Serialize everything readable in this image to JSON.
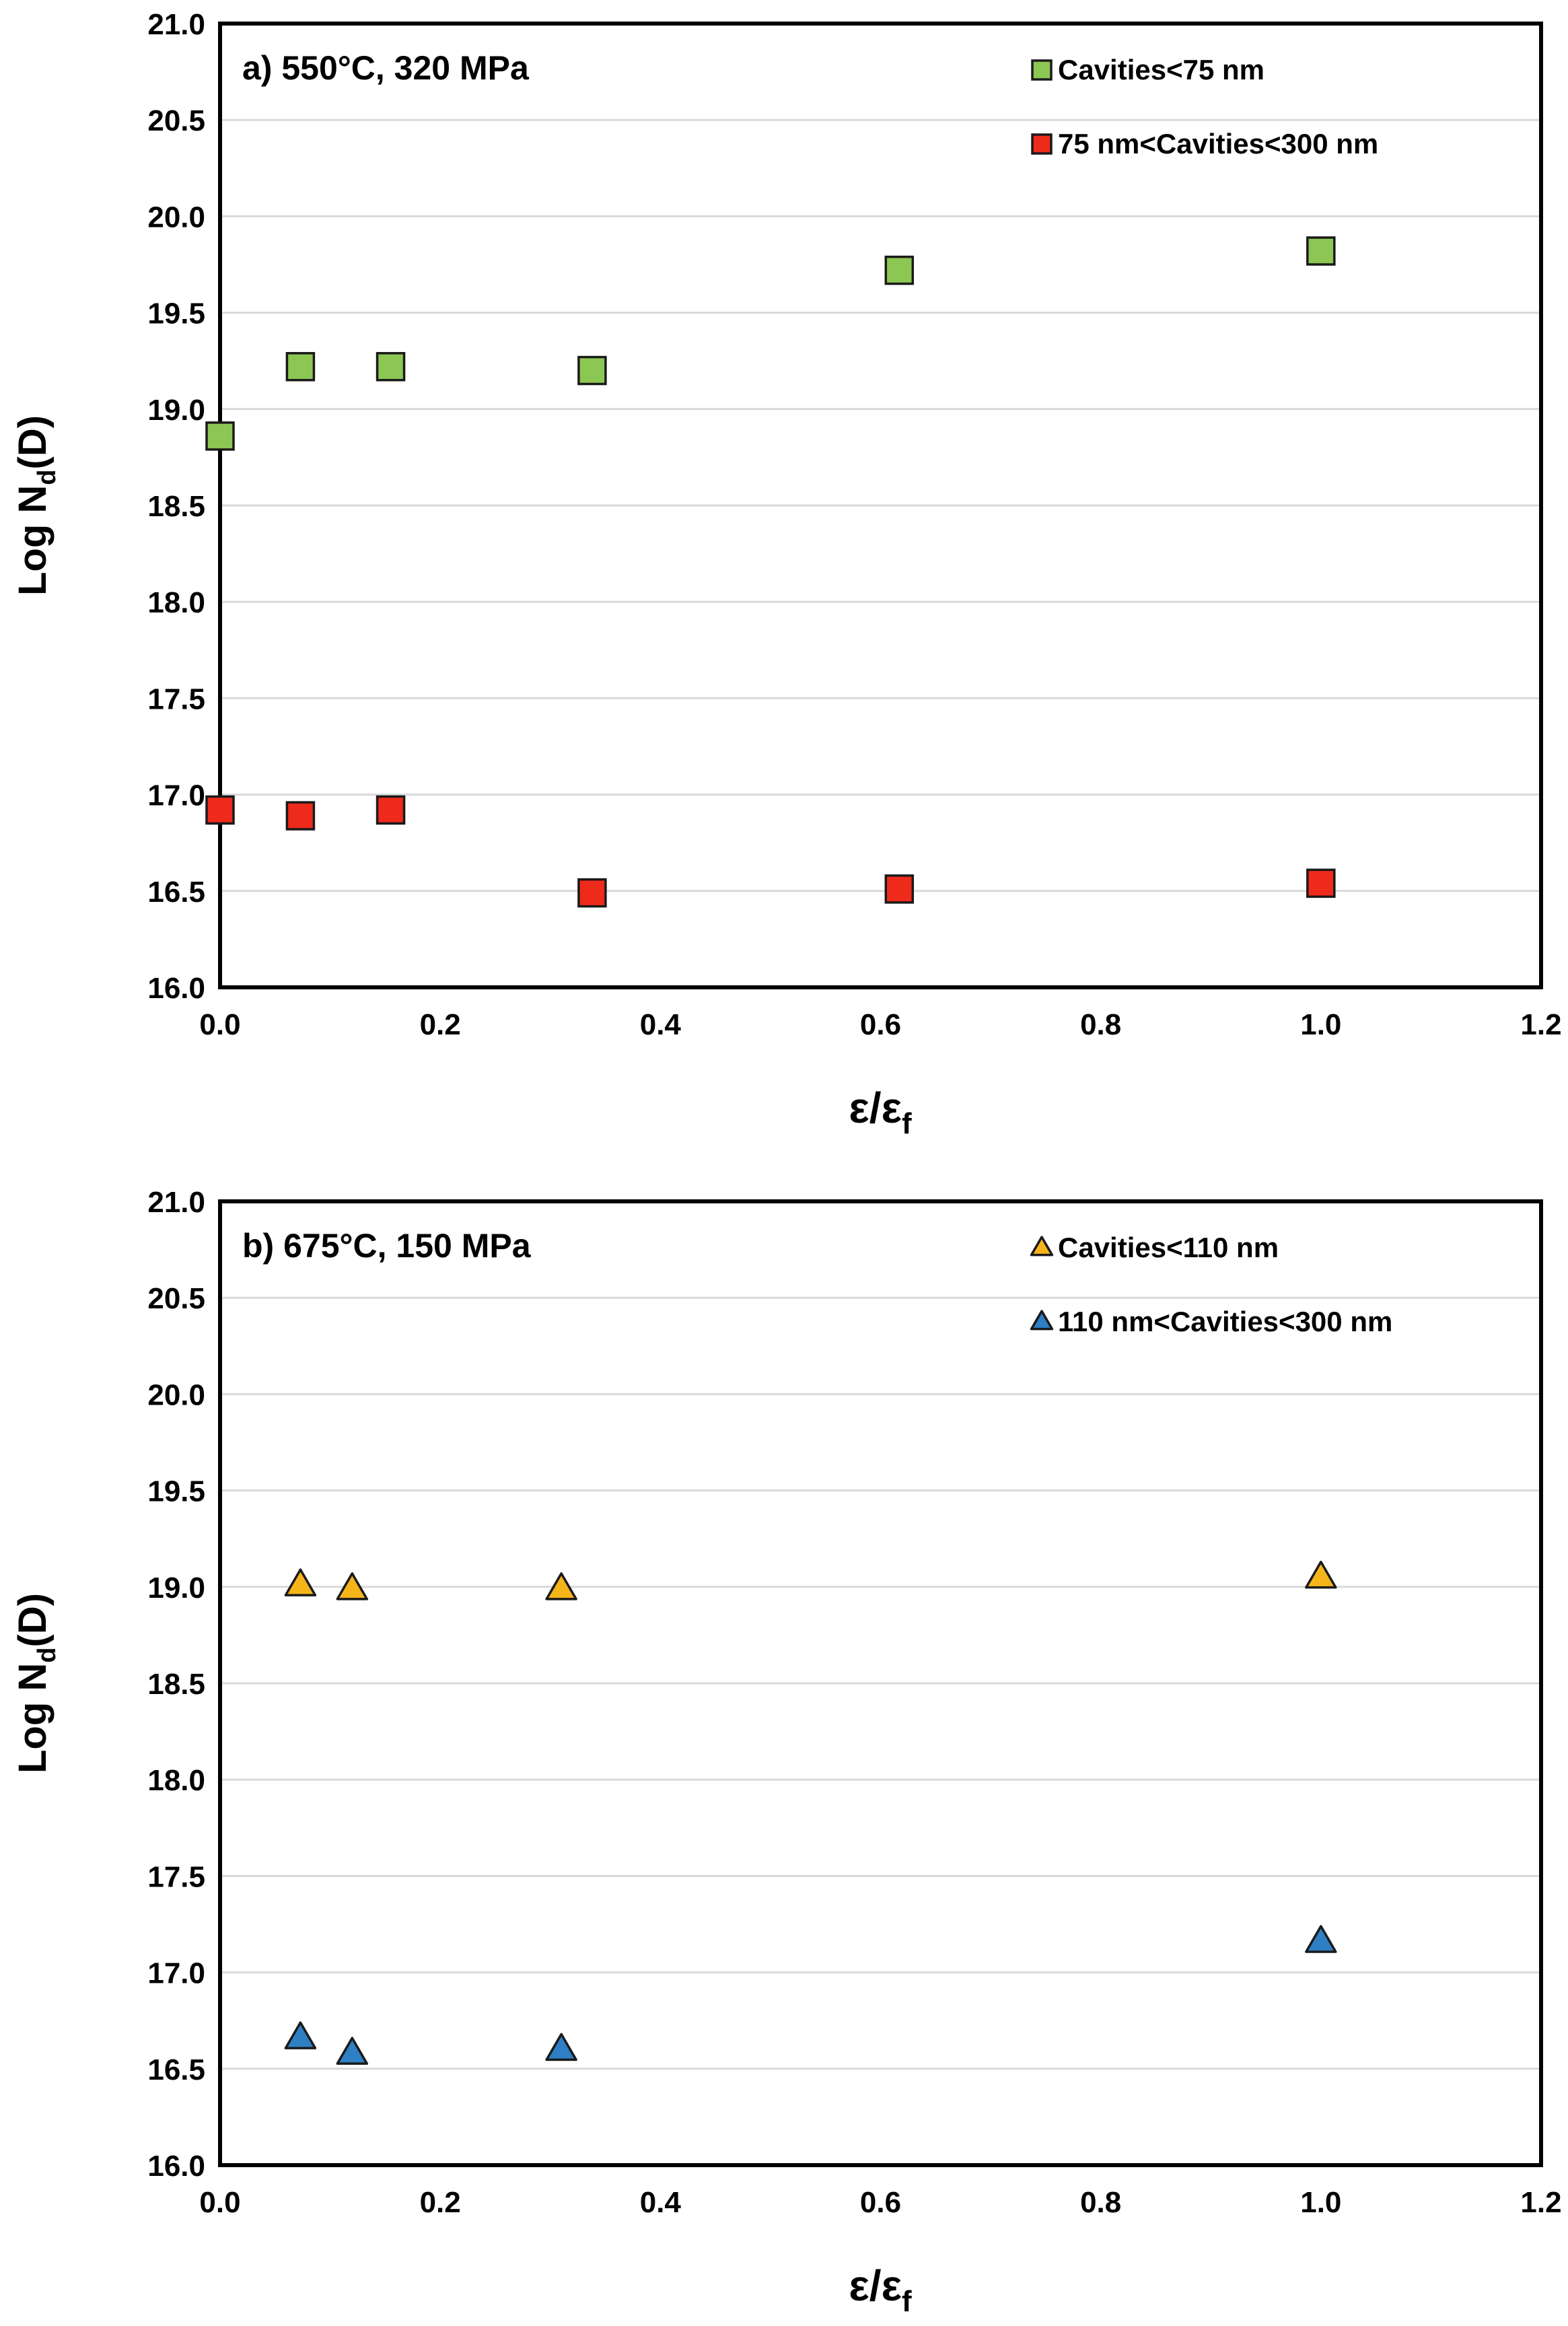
{
  "chart_data": [
    {
      "type": "scatter",
      "panel": "a",
      "title": "a) 550°C, 320 MPa",
      "xlabel": {
        "main": "ε/ε",
        "sub": "f"
      },
      "ylabel": {
        "pre": "Log N",
        "sub": "d",
        "post": "(D)"
      },
      "xlim": [
        0.0,
        1.2
      ],
      "ylim": [
        16.0,
        21.0
      ],
      "xticks": [
        "0.0",
        "0.2",
        "0.4",
        "0.6",
        "0.8",
        "1.0",
        "1.2"
      ],
      "yticks": [
        "16.0",
        "16.5",
        "17.0",
        "17.5",
        "18.0",
        "18.5",
        "19.0",
        "19.5",
        "20.0",
        "20.5",
        "21.0"
      ],
      "grid": "horizontal",
      "legend_position": "top-right",
      "series": [
        {
          "name": "Cavities<75 nm",
          "marker": "square",
          "color": "#8CC653",
          "x": [
            0.0,
            0.073,
            0.155,
            0.338,
            0.617,
            1.0
          ],
          "y": [
            18.86,
            19.22,
            19.22,
            19.2,
            19.72,
            19.82
          ]
        },
        {
          "name": "75 nm<Cavities<300 nm",
          "marker": "square",
          "color": "#EE2A1B",
          "x": [
            0.0,
            0.073,
            0.155,
            0.338,
            0.617,
            1.0
          ],
          "y": [
            16.92,
            16.89,
            16.92,
            16.49,
            16.51,
            16.54
          ]
        }
      ]
    },
    {
      "type": "scatter",
      "panel": "b",
      "title": "b) 675°C, 150 MPa",
      "xlabel": {
        "main": "ε/ε",
        "sub": "f"
      },
      "ylabel": {
        "pre": "Log N",
        "sub": "d",
        "post": "(D)"
      },
      "xlim": [
        0.0,
        1.2
      ],
      "ylim": [
        16.0,
        21.0
      ],
      "xticks": [
        "0.0",
        "0.2",
        "0.4",
        "0.6",
        "0.8",
        "1.0",
        "1.2"
      ],
      "yticks": [
        "16.0",
        "16.5",
        "17.0",
        "17.5",
        "18.0",
        "18.5",
        "19.0",
        "19.5",
        "20.0",
        "20.5",
        "21.0"
      ],
      "grid": "horizontal",
      "legend_position": "top-right",
      "series": [
        {
          "name": "Cavities<110 nm",
          "marker": "triangle",
          "color": "#F5B51A",
          "x": [
            0.073,
            0.12,
            0.31,
            1.0
          ],
          "y": [
            19.01,
            18.99,
            18.99,
            19.05
          ]
        },
        {
          "name": "110 nm<Cavities<300 nm",
          "marker": "triangle",
          "color": "#2E7FC4",
          "x": [
            0.073,
            0.12,
            0.31,
            1.0
          ],
          "y": [
            16.66,
            16.58,
            16.6,
            17.16
          ]
        }
      ]
    }
  ],
  "colors": {
    "axis": "#000000",
    "grid": "#d9d9d9",
    "marker_stroke": "#1a1a1a"
  }
}
